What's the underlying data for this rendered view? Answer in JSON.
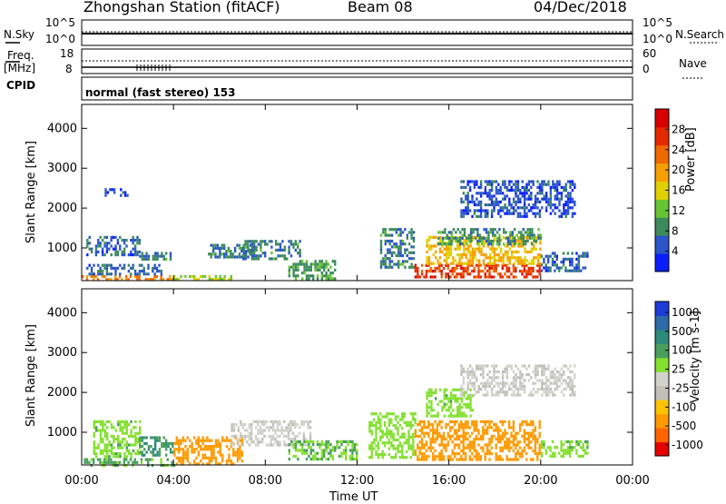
{
  "header": {
    "station": "Zhongshan Station (fitACF)",
    "beam": "Beam 08",
    "date": "04/Dec/2018"
  },
  "strip_labels": {
    "nsky": "N.Sky",
    "nsearch": "N.Search",
    "freq": "Freq.",
    "freq_unit": "[MHz]",
    "nave": "Nave",
    "cpid": "CPID",
    "mode": "normal (fast stereo) 153"
  },
  "strip_ticks": {
    "noise_left_top": "10^5",
    "noise_left_bottom": "10^0",
    "noise_right_top": "10^5",
    "noise_right_bottom": "10^0",
    "freq_left_top": "18",
    "freq_left_bottom": "8",
    "nave_right_top": "60",
    "nave_right_bottom": "0"
  },
  "colors": {
    "power_scale": [
      "#0a1eff",
      "#2b55c9",
      "#3d8a5c",
      "#68c434",
      "#e0d000",
      "#f5a000",
      "#ee6a00",
      "#e62a00",
      "#d80000"
    ],
    "velocity_scale": [
      "#e60000",
      "#ff6400",
      "#ff9a00",
      "#ffc300",
      "#c0c0b8",
      "#d2d2cc",
      "#84e030",
      "#4a9e5c",
      "#2e8a7a",
      "#2e6aa8",
      "#1e3cd8"
    ]
  },
  "chart_data": [
    {
      "type": "heatmap",
      "name": "power",
      "xlabel": "",
      "ylabel": "Slant Range [km]",
      "xlim": [
        0,
        24
      ],
      "ylim": [
        180,
        4600
      ],
      "yticks": [
        1000,
        2000,
        3000,
        4000
      ],
      "xticks": [
        0,
        4,
        8,
        12,
        16,
        20,
        24
      ],
      "colorbar": {
        "label": "Power [dB]",
        "range": [
          0,
          32
        ],
        "ticks": [
          4,
          8,
          12,
          16,
          20,
          24,
          28
        ]
      },
      "regions": [
        {
          "t": [
            0.0,
            4.0
          ],
          "r": [
            200,
            320
          ],
          "value": 22
        },
        {
          "t": [
            0.2,
            3.5
          ],
          "r": [
            320,
            600
          ],
          "value": 6
        },
        {
          "t": [
            0.2,
            2.5
          ],
          "r": [
            800,
            1300
          ],
          "value": 6
        },
        {
          "t": [
            1.0,
            2.0
          ],
          "r": [
            2300,
            2500
          ],
          "value": 5
        },
        {
          "t": [
            2.5,
            4.0
          ],
          "r": [
            700,
            900
          ],
          "value": 8
        },
        {
          "t": [
            4.0,
            6.5
          ],
          "r": [
            200,
            320
          ],
          "value": 14
        },
        {
          "t": [
            5.5,
            7.5
          ],
          "r": [
            800,
            1100
          ],
          "value": 8
        },
        {
          "t": [
            7.0,
            9.5
          ],
          "r": [
            700,
            1200
          ],
          "value": 8
        },
        {
          "t": [
            9.0,
            11.0
          ],
          "r": [
            200,
            700
          ],
          "value": 10
        },
        {
          "t": [
            13.0,
            14.5
          ],
          "r": [
            500,
            1500
          ],
          "value": 8
        },
        {
          "t": [
            14.5,
            20.0
          ],
          "r": [
            300,
            600
          ],
          "value": 26
        },
        {
          "t": [
            15.0,
            20.0
          ],
          "r": [
            600,
            1300
          ],
          "value": 18
        },
        {
          "t": [
            15.5,
            20.0
          ],
          "r": [
            1100,
            1500
          ],
          "value": 9
        },
        {
          "t": [
            16.5,
            21.5
          ],
          "r": [
            1800,
            2700
          ],
          "value": 5
        },
        {
          "t": [
            20.0,
            22.0
          ],
          "r": [
            400,
            900
          ],
          "value": 6
        }
      ]
    },
    {
      "type": "heatmap",
      "name": "velocity",
      "xlabel": "Time UT",
      "ylabel": "Slant Range [km]",
      "xlim": [
        0,
        24
      ],
      "ylim": [
        180,
        4600
      ],
      "yticks": [
        1000,
        2000,
        3000,
        4000
      ],
      "xticks": [
        0,
        4,
        8,
        12,
        16,
        20,
        24
      ],
      "xticklabels": [
        "00:00",
        "04:00",
        "08:00",
        "12:00",
        "16:00",
        "20:00",
        "00:00"
      ],
      "colorbar": {
        "label": "Velocity [m s-1]",
        "ticks": [
          "1000",
          "500",
          "100",
          "25",
          "-25",
          "-100",
          "-500",
          "-1000"
        ]
      },
      "regions": [
        {
          "t": [
            0.0,
            4.0
          ],
          "r": [
            200,
            350
          ],
          "value": 120
        },
        {
          "t": [
            0.5,
            2.5
          ],
          "r": [
            400,
            1300
          ],
          "value": 80
        },
        {
          "t": [
            2.5,
            4.0
          ],
          "r": [
            400,
            900
          ],
          "value": 300
        },
        {
          "t": [
            4.0,
            7.0
          ],
          "r": [
            200,
            900
          ],
          "value": -150
        },
        {
          "t": [
            6.5,
            10.0
          ],
          "r": [
            700,
            1300
          ],
          "value": 0
        },
        {
          "t": [
            9.0,
            12.0
          ],
          "r": [
            300,
            800
          ],
          "value": 100
        },
        {
          "t": [
            12.5,
            14.5
          ],
          "r": [
            400,
            1500
          ],
          "value": 60
        },
        {
          "t": [
            14.5,
            20.0
          ],
          "r": [
            300,
            1300
          ],
          "value": -150
        },
        {
          "t": [
            15.0,
            17.0
          ],
          "r": [
            1400,
            2100
          ],
          "value": 80
        },
        {
          "t": [
            16.5,
            21.5
          ],
          "r": [
            1900,
            2700
          ],
          "value": 0
        },
        {
          "t": [
            20.0,
            22.0
          ],
          "r": [
            400,
            800
          ],
          "value": 80
        }
      ]
    }
  ]
}
